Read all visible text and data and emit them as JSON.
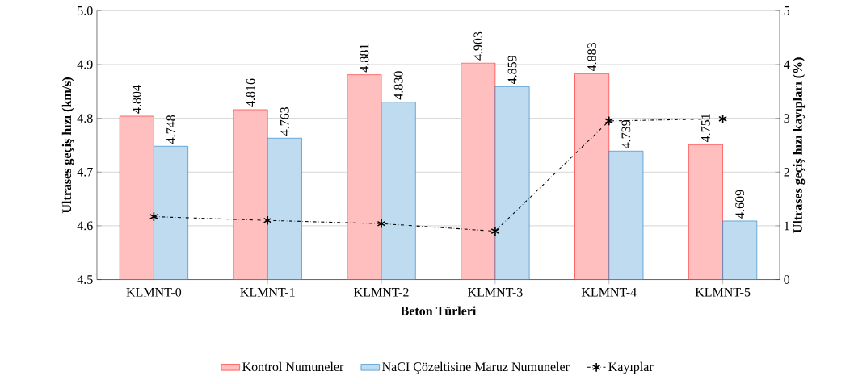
{
  "chart_data": {
    "type": "bar",
    "xlabel": "Beton Türleri",
    "ylabel": "Ultrases geçiş hızı (km/s)",
    "y2label": "Ultrases geçiş hızı kayıpları (%)",
    "categories": [
      "KLMNT-0",
      "KLMNT-1",
      "KLMNT-2",
      "KLMNT-3",
      "KLMNT-4",
      "KLMNT-5"
    ],
    "series": [
      {
        "name": "Kontrol Numuneler",
        "color": "#ff0000",
        "values": [
          4.804,
          4.816,
          4.881,
          4.903,
          4.883,
          4.751
        ],
        "value_labels": [
          "4.804",
          "4.816",
          "4.881",
          "4.903",
          "4.883",
          "4.751"
        ]
      },
      {
        "name": "NaCI Çözeltisine Maruz Numuneler",
        "color": "#0070c0",
        "values": [
          4.748,
          4.763,
          4.83,
          4.859,
          4.739,
          4.609
        ],
        "value_labels": [
          "4.748",
          "4.763",
          "4.830",
          "4.859",
          "4.739",
          "4.609"
        ]
      },
      {
        "name": "Kayıplar",
        "type": "line",
        "axis": "y2",
        "color": "#000000",
        "marker": "cross",
        "line_style": "dashdot",
        "values": [
          1.17,
          1.1,
          1.04,
          0.9,
          2.95,
          2.99
        ]
      }
    ],
    "ylim": [
      4.5,
      5.0
    ],
    "yticks": [
      4.5,
      4.6,
      4.7,
      4.8,
      4.9,
      {
        "value": 5,
        "label": "5.0"
      }
    ],
    "y2lim": [
      0,
      5
    ],
    "y2ticks": [
      0,
      1,
      2,
      3,
      4,
      5
    ],
    "grid": "y",
    "legend": "bottom"
  }
}
